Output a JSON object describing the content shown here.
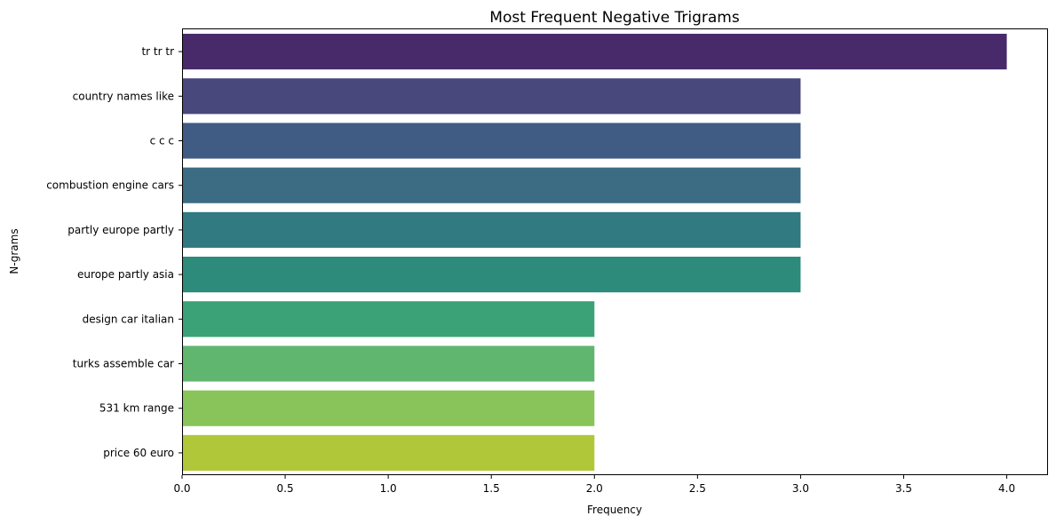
{
  "chart_data": {
    "type": "bar",
    "orientation": "horizontal",
    "title": "Most Frequent Negative Trigrams",
    "xlabel": "Frequency",
    "ylabel": "N-grams",
    "xlim": [
      0,
      4.2
    ],
    "xticks": [
      "0.0",
      "0.5",
      "1.0",
      "1.5",
      "2.0",
      "2.5",
      "3.0",
      "3.5",
      "4.0"
    ],
    "grid": false,
    "categories": [
      "tr tr tr",
      "country names like",
      "c c c",
      "combustion engine cars",
      "partly europe partly",
      "europe partly asia",
      "design car italian",
      "turks assemble car",
      "531 km range",
      "price 60 euro"
    ],
    "values": [
      4,
      3,
      3,
      3,
      3,
      3,
      2,
      2,
      2,
      2
    ],
    "colors": [
      "#482a6a",
      "#48487d",
      "#405b84",
      "#3b6c84",
      "#317a81",
      "#2d8b7c",
      "#3aa276",
      "#60b66f",
      "#89c45a",
      "#b1c73a"
    ]
  }
}
